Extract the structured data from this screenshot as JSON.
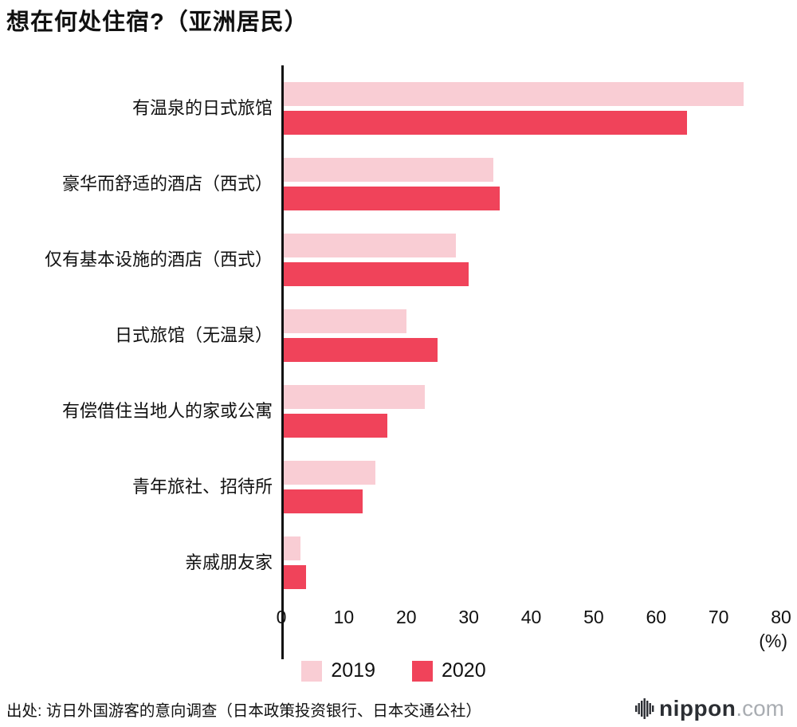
{
  "title": "想在何处住宿?（亚洲居民）",
  "chart_data": {
    "type": "bar",
    "orientation": "horizontal",
    "title": "想在何处住宿?（亚洲居民）",
    "categories": [
      "有温泉的日式旅馆",
      "豪华而舒适的酒店（西式）",
      "仅有基本设施的酒店（西式）",
      "日式旅馆（无温泉）",
      "有偿借住当地人的家或公寓",
      "青年旅社、招待所",
      "亲戚朋友家"
    ],
    "series": [
      {
        "name": "2019",
        "color": "#f9cdd4",
        "values": [
          74,
          34,
          28,
          20,
          23,
          15,
          3
        ]
      },
      {
        "name": "2020",
        "color": "#f0435a",
        "values": [
          65,
          35,
          30,
          25,
          17,
          13,
          4
        ]
      }
    ],
    "xlim": [
      0,
      80
    ],
    "xticks": [
      0,
      10,
      20,
      30,
      40,
      50,
      60,
      70,
      80
    ],
    "x_unit_label": "(%)",
    "grid": false,
    "legend_position": "bottom"
  },
  "footer": {
    "source": "出处: 访日外国游客的意向调查（日本政策投资银行、日本交通公社）"
  },
  "branding": {
    "logo_text_primary": "nippon",
    "logo_text_secondary": ".com"
  }
}
